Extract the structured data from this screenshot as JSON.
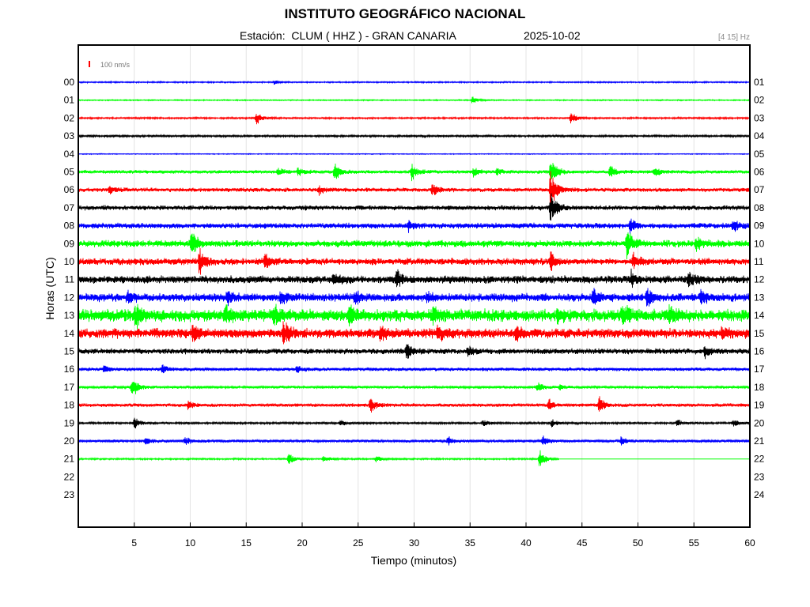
{
  "header": {
    "title": "INSTITUTO GEOGRÁFICO NACIONAL",
    "station": "Estación:  CLUM ( HHZ ) - GRAN CANARIA",
    "date": "2025-10-02",
    "filter": "[4 15] Hz"
  },
  "scale": {
    "label": "100 nm/s",
    "color": "#ff0000"
  },
  "chart_data": {
    "type": "line",
    "xlabel": "Tiempo (minutos)",
    "ylabel": "Horas (UTC)",
    "xlim": [
      0,
      60
    ],
    "x_ticks": [
      5,
      10,
      15,
      20,
      25,
      30,
      35,
      40,
      45,
      50,
      55,
      60
    ],
    "grid": true,
    "left_hour_labels": [
      "00",
      "01",
      "02",
      "03",
      "04",
      "05",
      "06",
      "07",
      "08",
      "09",
      "10",
      "11",
      "12",
      "13",
      "14",
      "15",
      "16",
      "17",
      "18",
      "19",
      "20",
      "21",
      "22",
      "23"
    ],
    "right_hour_labels": [
      "01",
      "02",
      "03",
      "04",
      "05",
      "06",
      "07",
      "08",
      "09",
      "10",
      "11",
      "12",
      "13",
      "14",
      "15",
      "16",
      "17",
      "18",
      "19",
      "20",
      "21",
      "22",
      "23",
      "24"
    ],
    "color_cycle": [
      "#0000ff",
      "#00ff00",
      "#ff0000",
      "#000000"
    ],
    "traces": [
      {
        "hour": "00",
        "noise": 1.0,
        "end_minute": 60,
        "events": [
          [
            17.5,
            3
          ]
        ]
      },
      {
        "hour": "01",
        "noise": 0.8,
        "end_minute": 60,
        "events": [
          [
            35.2,
            6
          ]
        ]
      },
      {
        "hour": "02",
        "noise": 1.2,
        "end_minute": 60,
        "events": [
          [
            15.9,
            10
          ],
          [
            44.0,
            9
          ]
        ]
      },
      {
        "hour": "03",
        "noise": 1.5,
        "end_minute": 60,
        "events": []
      },
      {
        "hour": "04",
        "noise": 0.6,
        "end_minute": 60,
        "events": []
      },
      {
        "hour": "05",
        "noise": 2.5,
        "end_minute": 60,
        "events": [
          [
            17.8,
            6
          ],
          [
            19.6,
            7
          ],
          [
            22.9,
            14
          ],
          [
            29.8,
            12
          ],
          [
            35.3,
            7
          ],
          [
            37.4,
            5
          ],
          [
            42.2,
            20
          ],
          [
            47.5,
            9
          ],
          [
            51.5,
            8
          ]
        ]
      },
      {
        "hour": "06",
        "noise": 3.0,
        "end_minute": 60,
        "events": [
          [
            2.8,
            6
          ],
          [
            21.5,
            7
          ],
          [
            31.6,
            10
          ],
          [
            42.2,
            30
          ]
        ]
      },
      {
        "hour": "07",
        "noise": 3.5,
        "end_minute": 60,
        "events": [
          [
            42.2,
            24
          ]
        ]
      },
      {
        "hour": "08",
        "noise": 4.0,
        "end_minute": 60,
        "events": [
          [
            29.5,
            7
          ],
          [
            49.3,
            12
          ],
          [
            58.5,
            8
          ]
        ]
      },
      {
        "hour": "09",
        "noise": 5.0,
        "end_minute": 60,
        "events": [
          [
            10.1,
            18
          ],
          [
            49.0,
            20
          ],
          [
            55.2,
            10
          ]
        ]
      },
      {
        "hour": "10",
        "noise": 5.0,
        "end_minute": 60,
        "events": [
          [
            10.8,
            22
          ],
          [
            16.7,
            10
          ],
          [
            42.2,
            12
          ],
          [
            49.6,
            11
          ]
        ]
      },
      {
        "hour": "11",
        "noise": 5.5,
        "end_minute": 60,
        "events": [
          [
            22.8,
            10
          ],
          [
            28.4,
            14
          ],
          [
            49.4,
            9
          ],
          [
            54.5,
            12
          ]
        ]
      },
      {
        "hour": "12",
        "noise": 6.0,
        "end_minute": 60,
        "events": [
          [
            4.4,
            9
          ],
          [
            13.3,
            8
          ],
          [
            18.1,
            9
          ],
          [
            24.7,
            9
          ],
          [
            31.2,
            7
          ],
          [
            46.0,
            10
          ],
          [
            50.8,
            13
          ],
          [
            55.6,
            12
          ]
        ]
      },
      {
        "hour": "13",
        "noise": 9.0,
        "end_minute": 60,
        "events": [
          [
            5.1,
            16
          ],
          [
            13.1,
            16
          ],
          [
            17.5,
            12
          ],
          [
            24.2,
            12
          ],
          [
            31.7,
            12
          ],
          [
            42.8,
            10
          ],
          [
            48.6,
            14
          ],
          [
            52.8,
            12
          ]
        ]
      },
      {
        "hour": "14",
        "noise": 7.0,
        "end_minute": 60,
        "events": [
          [
            10.2,
            12
          ],
          [
            18.3,
            18
          ],
          [
            27.0,
            10
          ],
          [
            32.1,
            11
          ],
          [
            39.1,
            10
          ],
          [
            57.5,
            9
          ]
        ]
      },
      {
        "hour": "15",
        "noise": 4.0,
        "end_minute": 60,
        "events": [
          [
            29.3,
            12
          ],
          [
            34.8,
            8
          ],
          [
            56.0,
            8
          ]
        ]
      },
      {
        "hour": "16",
        "noise": 2.5,
        "end_minute": 60,
        "events": [
          [
            2.3,
            5
          ],
          [
            7.5,
            6
          ],
          [
            19.5,
            5
          ]
        ]
      },
      {
        "hour": "17",
        "noise": 2.0,
        "end_minute": 60,
        "events": [
          [
            4.8,
            16
          ],
          [
            41.0,
            8
          ],
          [
            43.0,
            5
          ]
        ]
      },
      {
        "hour": "18",
        "noise": 2.5,
        "end_minute": 60,
        "events": [
          [
            9.8,
            6
          ],
          [
            26.1,
            12
          ],
          [
            42.0,
            8
          ],
          [
            46.5,
            14
          ]
        ]
      },
      {
        "hour": "19",
        "noise": 1.5,
        "end_minute": 60,
        "events": [
          [
            5.0,
            10
          ],
          [
            23.4,
            5
          ],
          [
            36.2,
            5
          ],
          [
            42.3,
            6
          ],
          [
            53.5,
            5
          ],
          [
            58.5,
            6
          ]
        ]
      },
      {
        "hour": "20",
        "noise": 2.0,
        "end_minute": 60,
        "events": [
          [
            6.0,
            6
          ],
          [
            9.5,
            6
          ],
          [
            33.0,
            6
          ],
          [
            41.5,
            7
          ],
          [
            48.5,
            7
          ]
        ]
      },
      {
        "hour": "21",
        "noise": 1.2,
        "end_minute": 43,
        "events": [
          [
            18.8,
            10
          ],
          [
            21.9,
            6
          ],
          [
            26.6,
            5
          ],
          [
            41.2,
            14
          ]
        ]
      }
    ]
  }
}
